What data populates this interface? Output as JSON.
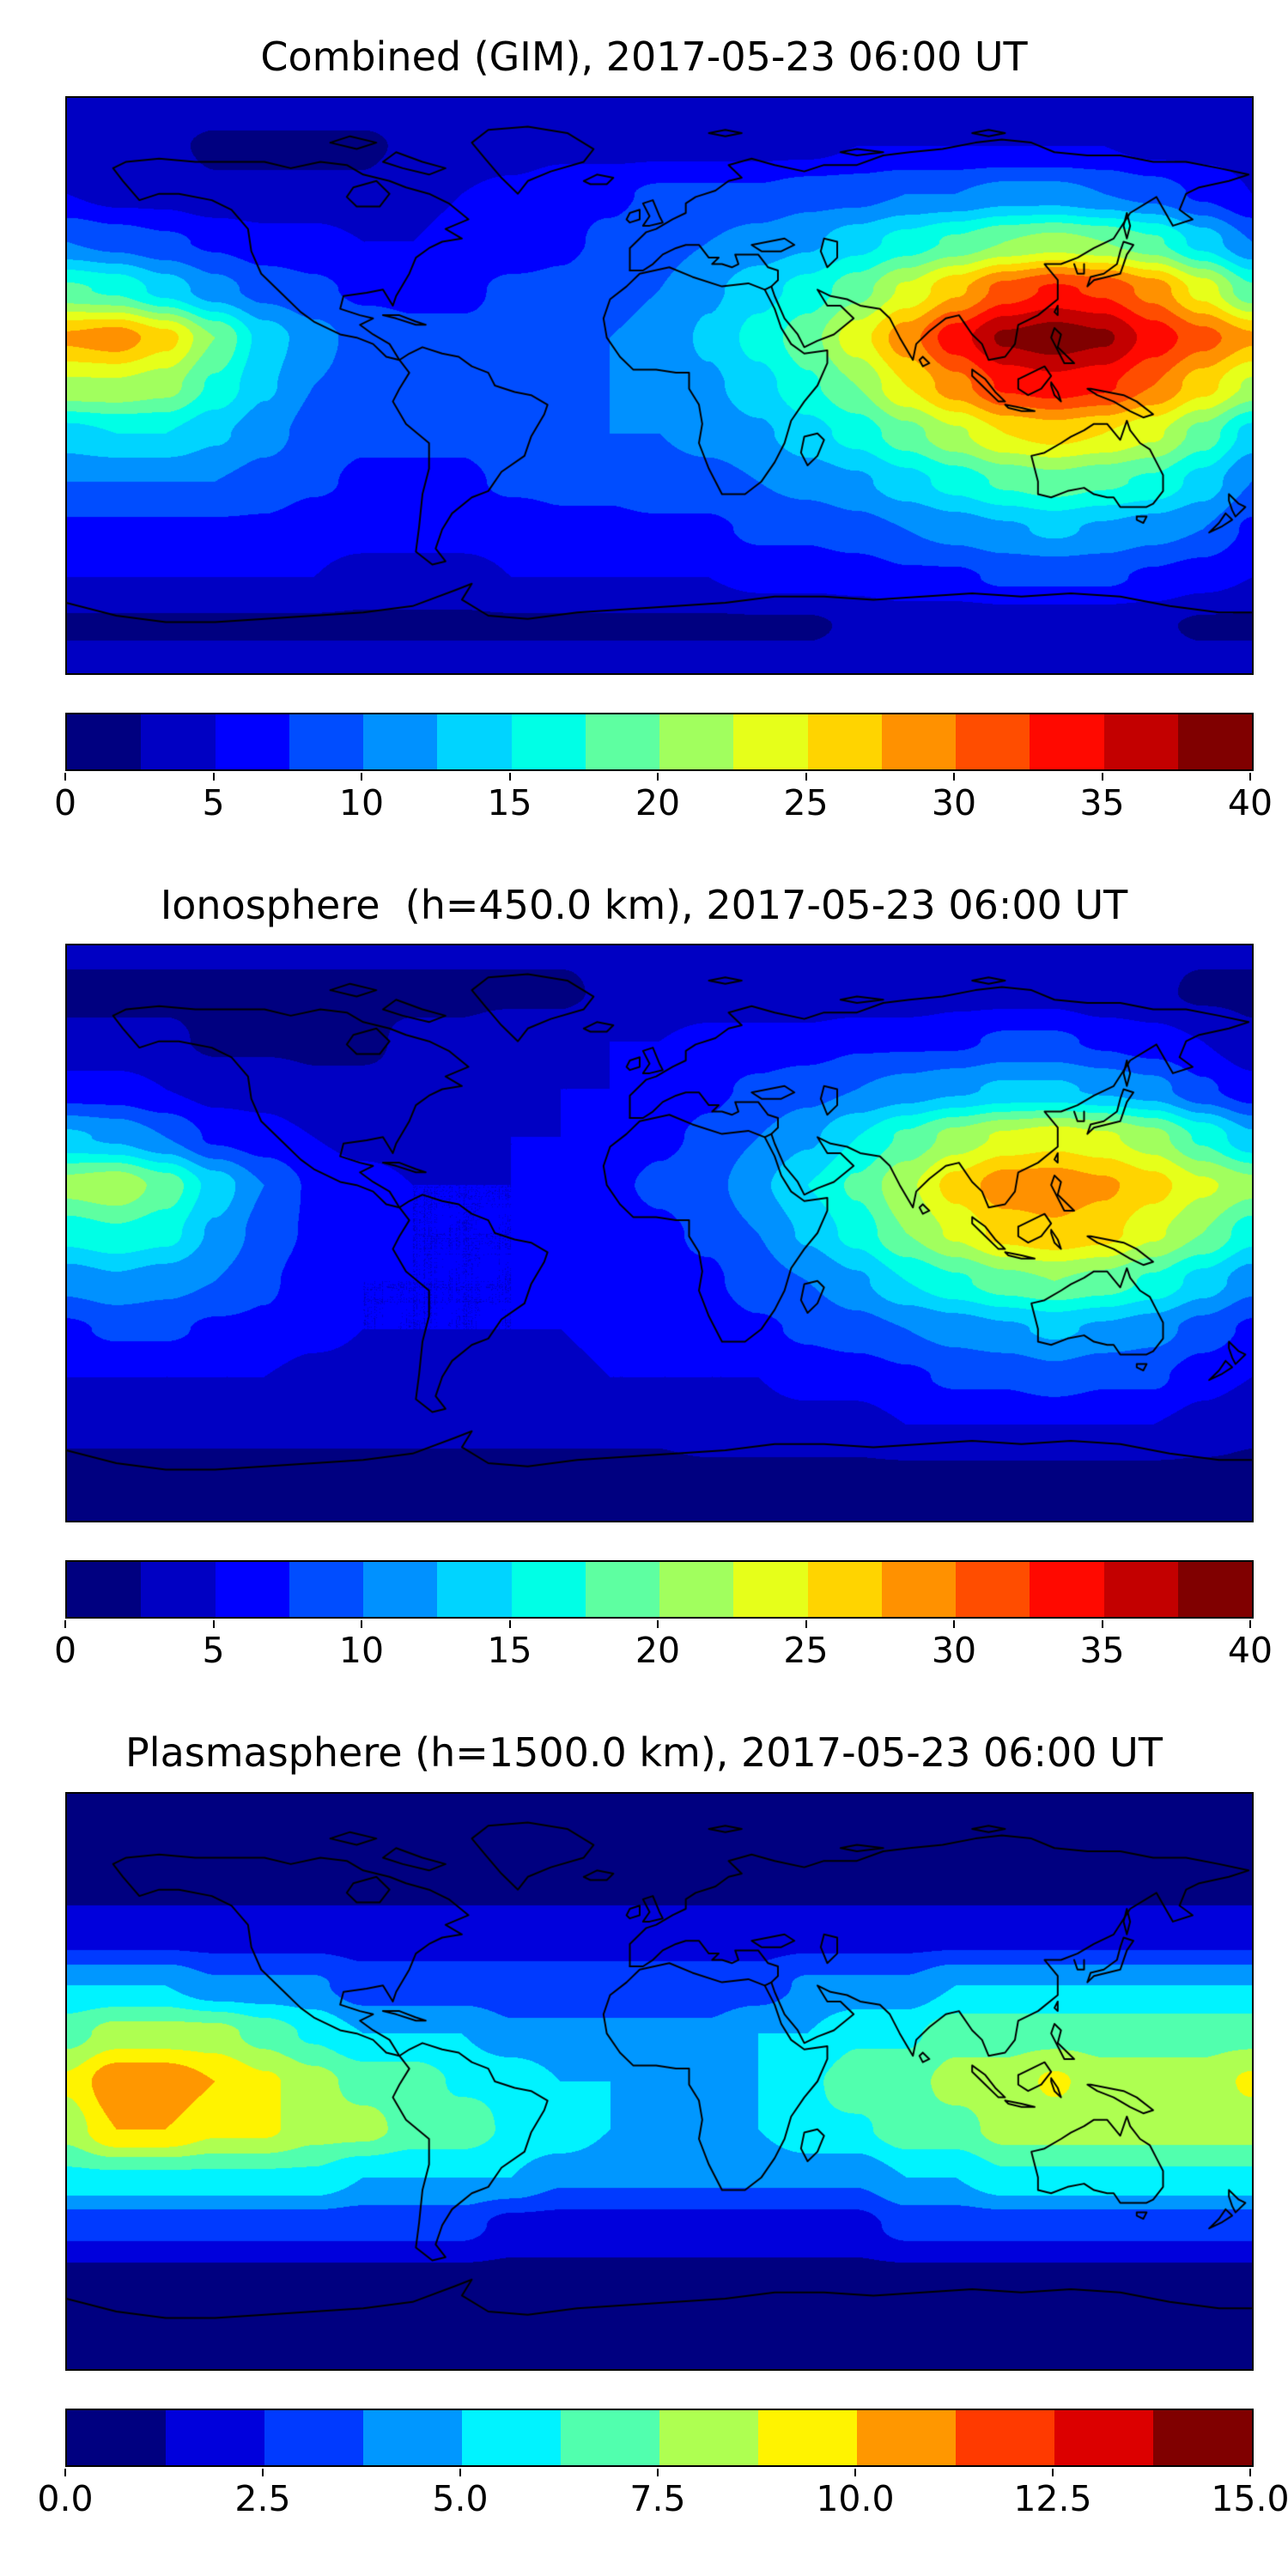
{
  "figure": {
    "background": "#ffffff",
    "frame_color": "#000000",
    "coastline_color": "#000000"
  },
  "chart_data": [
    {
      "type": "heatmap",
      "title": "Combined (GIM), 2017-05-23 06:00 UT",
      "colormap": "jet",
      "vmin": 0,
      "vmax": 40,
      "n_levels": 16,
      "legend_position": "bottom-colorbar",
      "grid_on": false,
      "palette": [
        "#000080",
        "#0000C3",
        "#0000FF",
        "#004DFF",
        "#0091FF",
        "#00D4FF",
        "#00FFE6",
        "#5EFFA1",
        "#A1FF5E",
        "#E6FF1A",
        "#FFD400",
        "#FF9100",
        "#FF4D00",
        "#FF0900",
        "#C30000",
        "#800000"
      ],
      "tick_values": [
        0,
        5,
        10,
        15,
        20,
        25,
        30,
        35,
        40
      ],
      "tick_labels": [
        "0",
        "5",
        "10",
        "15",
        "20",
        "25",
        "30",
        "35",
        "40"
      ],
      "lon_range": [
        -180,
        180
      ],
      "lat_range": [
        -90,
        90
      ],
      "grid_lons": [
        -180,
        -165,
        -150,
        -135,
        -120,
        -105,
        -90,
        -75,
        -60,
        -45,
        -30,
        -15,
        0,
        15,
        30,
        45,
        60,
        75,
        90,
        105,
        120,
        135,
        150,
        165,
        180
      ],
      "grid_lats": [
        90,
        75,
        60,
        45,
        30,
        15,
        0,
        -15,
        -30,
        -45,
        -60,
        -75,
        -90
      ],
      "values": [
        [
          4,
          4,
          4,
          4,
          4,
          4,
          4,
          4,
          4,
          4,
          4,
          4,
          4,
          4,
          4,
          4,
          4,
          4,
          4,
          4,
          4,
          4,
          4,
          4,
          4
        ],
        [
          4,
          4,
          3,
          2,
          2,
          2,
          2,
          3,
          3,
          3,
          4,
          4,
          4,
          4,
          4,
          4,
          5,
          5,
          5,
          5,
          5,
          5,
          4,
          4,
          4
        ],
        [
          5,
          4,
          4,
          3,
          3,
          3,
          3,
          4,
          5,
          6,
          7,
          7,
          8,
          8,
          8,
          9,
          9,
          10,
          10,
          11,
          11,
          10,
          9,
          7,
          5
        ],
        [
          10,
          9,
          8,
          7,
          6,
          6,
          5,
          5,
          6,
          6,
          7,
          8,
          9,
          10,
          11,
          12,
          14,
          16,
          18,
          20,
          21,
          20,
          18,
          14,
          10
        ],
        [
          18,
          17,
          14,
          11,
          9,
          8,
          7,
          7,
          7,
          8,
          8,
          9,
          10,
          12,
          14,
          16,
          19,
          23,
          27,
          31,
          33,
          32,
          29,
          24,
          18
        ],
        [
          28,
          29,
          26,
          20,
          14,
          11,
          9,
          8,
          8,
          8,
          9,
          10,
          11,
          13,
          16,
          19,
          24,
          29,
          34,
          38,
          39,
          38,
          34,
          31,
          28
        ],
        [
          22,
          22,
          21,
          17,
          13,
          10,
          9,
          8,
          8,
          9,
          9,
          10,
          11,
          12,
          14,
          17,
          20,
          25,
          29,
          33,
          34,
          33,
          30,
          26,
          22
        ],
        [
          14,
          15,
          15,
          13,
          11,
          9,
          8,
          8,
          8,
          9,
          9,
          10,
          10,
          11,
          12,
          14,
          16,
          19,
          22,
          25,
          26,
          25,
          23,
          19,
          14
        ],
        [
          10,
          10,
          10,
          10,
          9,
          8,
          7,
          7,
          7,
          8,
          8,
          8,
          9,
          9,
          10,
          11,
          12,
          14,
          16,
          18,
          19,
          18,
          17,
          14,
          10
        ],
        [
          7,
          7,
          7,
          7,
          7,
          6,
          6,
          6,
          6,
          6,
          7,
          7,
          7,
          7,
          8,
          8,
          9,
          10,
          11,
          12,
          13,
          12,
          11,
          10,
          7
        ],
        [
          5,
          5,
          5,
          5,
          5,
          5,
          4,
          4,
          4,
          5,
          5,
          5,
          5,
          5,
          6,
          6,
          6,
          7,
          7,
          8,
          8,
          8,
          7,
          6,
          5
        ],
        [
          2,
          2,
          2,
          2,
          2,
          2,
          2,
          2,
          2,
          2,
          2,
          2,
          2,
          2,
          2,
          2,
          3,
          3,
          3,
          3,
          3,
          3,
          3,
          2,
          2
        ],
        [
          4,
          4,
          4,
          4,
          4,
          4,
          4,
          4,
          4,
          4,
          4,
          4,
          4,
          4,
          4,
          4,
          4,
          4,
          4,
          4,
          4,
          4,
          4,
          4,
          4
        ]
      ]
    },
    {
      "type": "heatmap",
      "title": "Ionosphere  (h=450.0 km), 2017-05-23 06:00 UT",
      "colormap": "jet",
      "vmin": 0,
      "vmax": 40,
      "n_levels": 16,
      "legend_position": "bottom-colorbar",
      "grid_on": false,
      "palette": [
        "#000080",
        "#0000C3",
        "#0000FF",
        "#004DFF",
        "#0091FF",
        "#00D4FF",
        "#00FFE6",
        "#5EFFA1",
        "#A1FF5E",
        "#E6FF1A",
        "#FFD400",
        "#FF9100",
        "#FF4D00",
        "#FF0900",
        "#C30000",
        "#800000"
      ],
      "tick_values": [
        0,
        5,
        10,
        15,
        20,
        25,
        30,
        35,
        40
      ],
      "tick_labels": [
        "0",
        "5",
        "10",
        "15",
        "20",
        "25",
        "30",
        "35",
        "40"
      ],
      "lon_range": [
        -180,
        180
      ],
      "lat_range": [
        -90,
        90
      ],
      "grid_lons": [
        -180,
        -165,
        -150,
        -135,
        -120,
        -105,
        -90,
        -75,
        -60,
        -45,
        -30,
        -15,
        0,
        15,
        30,
        45,
        60,
        75,
        90,
        105,
        120,
        135,
        150,
        165,
        180
      ],
      "grid_lats": [
        90,
        75,
        60,
        45,
        30,
        15,
        0,
        -15,
        -30,
        -45,
        -60,
        -75,
        -90
      ],
      "values": [
        [
          3,
          3,
          3,
          3,
          3,
          3,
          3,
          3,
          3,
          3,
          3,
          3,
          3,
          3,
          3,
          3,
          3,
          3,
          3,
          3,
          3,
          3,
          3,
          3,
          3
        ],
        [
          2,
          2,
          2,
          2,
          2,
          2,
          2,
          2,
          2,
          2,
          2,
          3,
          3,
          3,
          3,
          3,
          3,
          3,
          4,
          4,
          4,
          3,
          3,
          2,
          2
        ],
        [
          3,
          3,
          3,
          2,
          2,
          2,
          2,
          3,
          3,
          4,
          4,
          5,
          5,
          6,
          6,
          6,
          7,
          7,
          7,
          8,
          8,
          7,
          6,
          5,
          3
        ],
        [
          6,
          6,
          5,
          4,
          4,
          3,
          3,
          3,
          4,
          4,
          5,
          5,
          6,
          7,
          8,
          9,
          10,
          11,
          12,
          13,
          13,
          12,
          11,
          8,
          6
        ],
        [
          13,
          12,
          10,
          7,
          6,
          5,
          4,
          4,
          4,
          5,
          5,
          6,
          7,
          8,
          10,
          12,
          15,
          18,
          21,
          23,
          24,
          23,
          21,
          17,
          13
        ],
        [
          21,
          22,
          19,
          14,
          10,
          7,
          6,
          5,
          5,
          5,
          6,
          7,
          8,
          9,
          12,
          15,
          18,
          22,
          26,
          29,
          29,
          28,
          26,
          23,
          21
        ],
        [
          16,
          17,
          16,
          12,
          9,
          7,
          6,
          5,
          5,
          5,
          6,
          6,
          7,
          8,
          10,
          13,
          16,
          20,
          23,
          26,
          27,
          26,
          23,
          20,
          16
        ],
        [
          11,
          12,
          11,
          10,
          8,
          6,
          5,
          5,
          5,
          5,
          6,
          6,
          7,
          7,
          9,
          10,
          12,
          15,
          17,
          19,
          20,
          19,
          17,
          14,
          11
        ],
        [
          7,
          8,
          8,
          7,
          7,
          6,
          5,
          5,
          5,
          5,
          5,
          6,
          6,
          6,
          7,
          8,
          9,
          10,
          11,
          12,
          13,
          12,
          11,
          9,
          7
        ],
        [
          5,
          5,
          5,
          5,
          5,
          4,
          4,
          4,
          4,
          4,
          4,
          5,
          5,
          5,
          5,
          6,
          6,
          7,
          8,
          8,
          9,
          8,
          8,
          6,
          5
        ],
        [
          3,
          3,
          3,
          3,
          3,
          3,
          3,
          3,
          3,
          3,
          3,
          3,
          3,
          4,
          4,
          4,
          4,
          5,
          5,
          5,
          5,
          5,
          5,
          4,
          3
        ],
        [
          2,
          2,
          2,
          2,
          2,
          2,
          2,
          2,
          2,
          2,
          2,
          2,
          2,
          2,
          2,
          2,
          2,
          2,
          2,
          2,
          2,
          2,
          2,
          2,
          2
        ],
        [
          2,
          2,
          2,
          2,
          2,
          2,
          2,
          2,
          2,
          2,
          2,
          2,
          2,
          2,
          2,
          2,
          2,
          2,
          2,
          2,
          2,
          2,
          2,
          2,
          2
        ]
      ]
    },
    {
      "type": "heatmap",
      "title": "Plasmasphere (h=1500.0 km), 2017-05-23 06:00 UT",
      "colormap": "jet",
      "vmin": 0,
      "vmax": 15,
      "n_levels": 12,
      "legend_position": "bottom-colorbar",
      "grid_on": false,
      "palette": [
        "#000080",
        "#0000DC",
        "#003AFF",
        "#0097FF",
        "#00F3FF",
        "#51FFAE",
        "#AEFF51",
        "#FFF300",
        "#FF9700",
        "#FF3A00",
        "#DC0000",
        "#800000"
      ],
      "tick_values": [
        0,
        2.5,
        5,
        7.5,
        10,
        12.5,
        15
      ],
      "tick_labels": [
        "0.0",
        "2.5",
        "5.0",
        "7.5",
        "10.0",
        "12.5",
        "15.0"
      ],
      "lon_range": [
        -180,
        180
      ],
      "lat_range": [
        -90,
        90
      ],
      "grid_lons": [
        -180,
        -165,
        -150,
        -135,
        -120,
        -105,
        -90,
        -75,
        -60,
        -45,
        -30,
        -15,
        0,
        15,
        30,
        45,
        60,
        75,
        90,
        105,
        120,
        135,
        150,
        165,
        180
      ],
      "grid_lats": [
        90,
        75,
        60,
        45,
        30,
        15,
        0,
        -15,
        -30,
        -45,
        -60,
        -75,
        -90
      ],
      "values": [
        [
          1,
          1,
          1,
          1,
          1,
          1,
          1,
          1,
          1,
          1,
          1,
          1,
          1,
          1,
          1,
          1,
          1,
          1,
          1,
          1,
          1,
          1,
          1,
          1,
          1
        ],
        [
          1,
          1,
          1,
          1,
          1,
          1,
          1,
          1,
          1,
          1,
          1,
          1,
          1,
          1,
          1,
          1,
          1,
          1,
          1,
          1,
          1,
          1,
          1,
          1,
          1
        ],
        [
          1,
          1,
          1,
          1,
          1,
          1,
          1,
          1,
          1,
          1,
          1,
          1,
          1,
          1,
          1,
          1,
          1,
          1,
          1,
          1,
          1,
          1,
          1,
          1,
          1
        ],
        [
          2,
          2,
          2,
          2,
          2,
          2,
          2,
          2,
          2,
          2,
          2,
          2,
          2,
          2,
          2,
          2,
          2,
          2,
          2,
          2,
          2,
          2,
          2,
          2,
          2
        ],
        [
          5,
          5,
          5,
          4,
          4,
          4,
          3,
          3,
          3,
          3,
          3,
          3,
          3,
          3,
          3,
          4,
          4,
          4,
          5,
          5,
          5,
          5,
          5,
          5,
          5
        ],
        [
          7,
          8,
          8,
          8,
          7,
          6,
          5,
          5,
          5,
          4,
          4,
          4,
          4,
          4,
          5,
          5,
          6,
          6,
          7,
          7,
          7,
          7,
          7,
          7,
          7
        ],
        [
          9,
          11,
          11,
          10,
          9,
          8,
          7,
          7,
          6,
          6,
          5,
          5,
          4,
          4,
          5,
          6,
          7,
          7,
          8,
          8,
          9,
          8,
          8,
          8,
          9
        ],
        [
          8,
          10,
          10,
          9,
          9,
          8,
          8,
          7,
          7,
          6,
          6,
          5,
          5,
          5,
          5,
          6,
          6,
          7,
          7,
          8,
          8,
          8,
          8,
          8,
          8
        ],
        [
          6,
          6,
          6,
          6,
          6,
          6,
          5,
          5,
          5,
          5,
          4,
          4,
          4,
          4,
          4,
          4,
          4,
          5,
          5,
          6,
          6,
          6,
          6,
          6,
          6
        ],
        [
          3,
          3,
          3,
          3,
          3,
          3,
          3,
          3,
          3,
          2,
          2,
          2,
          2,
          2,
          2,
          2,
          2,
          3,
          3,
          3,
          3,
          3,
          3,
          3,
          3
        ],
        [
          1,
          1,
          1,
          1,
          1,
          1,
          1,
          1,
          1,
          1,
          1,
          1,
          1,
          1,
          1,
          1,
          1,
          1,
          1,
          1,
          1,
          1,
          1,
          1,
          1
        ],
        [
          1,
          1,
          1,
          1,
          1,
          1,
          1,
          1,
          1,
          1,
          1,
          1,
          1,
          1,
          1,
          1,
          1,
          1,
          1,
          1,
          1,
          1,
          1,
          1,
          1
        ],
        [
          1,
          1,
          1,
          1,
          1,
          1,
          1,
          1,
          1,
          1,
          1,
          1,
          1,
          1,
          1,
          1,
          1,
          1,
          1,
          1,
          1,
          1,
          1,
          1,
          1
        ]
      ]
    }
  ]
}
